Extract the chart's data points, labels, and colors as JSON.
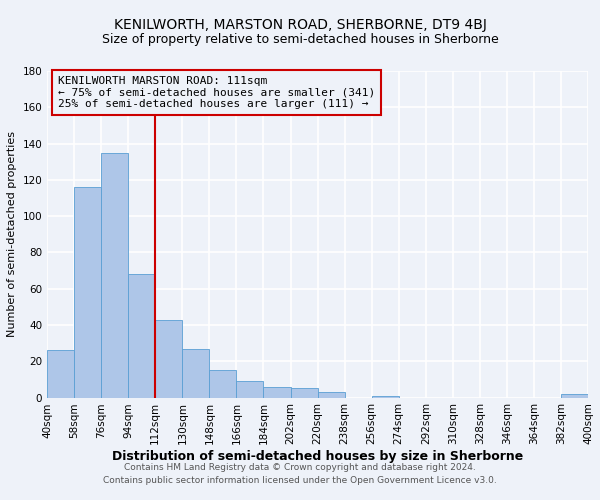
{
  "title": "KENILWORTH, MARSTON ROAD, SHERBORNE, DT9 4BJ",
  "subtitle": "Size of property relative to semi-detached houses in Sherborne",
  "xlabel": "Distribution of semi-detached houses by size in Sherborne",
  "ylabel": "Number of semi-detached properties",
  "bin_edges": [
    40,
    58,
    76,
    94,
    112,
    130,
    148,
    166,
    184,
    202,
    220,
    238,
    256,
    274,
    292,
    310,
    328,
    346,
    364,
    382,
    400
  ],
  "bar_heights": [
    26,
    116,
    135,
    68,
    43,
    27,
    15,
    9,
    6,
    5,
    3,
    0,
    1,
    0,
    0,
    0,
    0,
    0,
    0,
    2
  ],
  "bar_color": "#aec6e8",
  "bar_edge_color": "#5a9fd4",
  "vline_x": 112,
  "vline_color": "#cc0000",
  "annotation_title": "KENILWORTH MARSTON ROAD: 111sqm",
  "annotation_line1": "← 75% of semi-detached houses are smaller (341)",
  "annotation_line2": "25% of semi-detached houses are larger (111) →",
  "annotation_box_color": "#cc0000",
  "ylim": [
    0,
    180
  ],
  "yticks": [
    0,
    20,
    40,
    60,
    80,
    100,
    120,
    140,
    160,
    180
  ],
  "tick_labels": [
    "40sqm",
    "58sqm",
    "76sqm",
    "94sqm",
    "112sqm",
    "130sqm",
    "148sqm",
    "166sqm",
    "184sqm",
    "202sqm",
    "220sqm",
    "238sqm",
    "256sqm",
    "274sqm",
    "292sqm",
    "310sqm",
    "328sqm",
    "346sqm",
    "364sqm",
    "382sqm",
    "400sqm"
  ],
  "footer1": "Contains HM Land Registry data © Crown copyright and database right 2024.",
  "footer2": "Contains public sector information licensed under the Open Government Licence v3.0.",
  "bg_color": "#eef2f9",
  "grid_color": "#ffffff",
  "title_fontsize": 10,
  "subtitle_fontsize": 9,
  "xlabel_fontsize": 9,
  "ylabel_fontsize": 8,
  "tick_fontsize": 7.5,
  "annotation_fontsize": 8,
  "footer_fontsize": 6.5
}
